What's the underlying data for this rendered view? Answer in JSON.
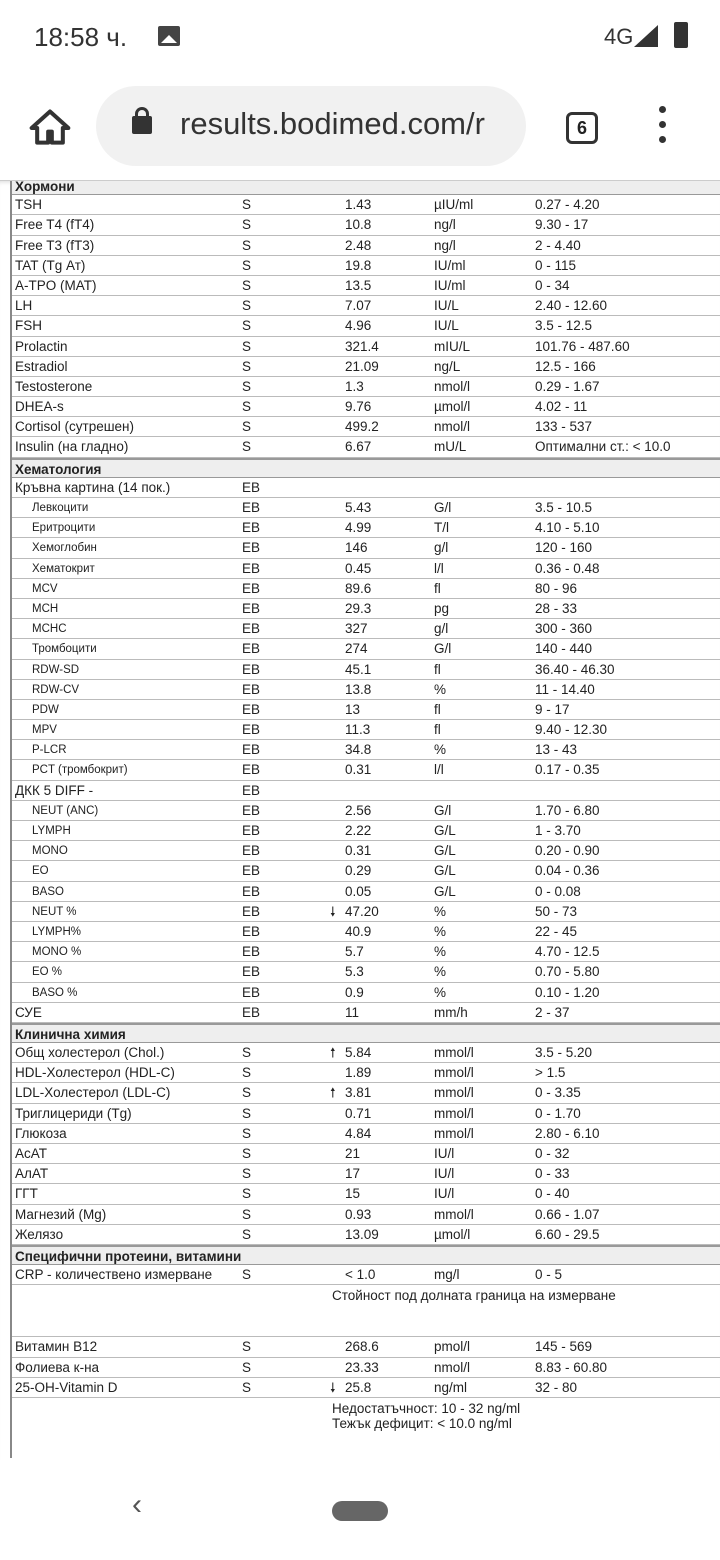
{
  "status_bar": {
    "time": "18:58 ч.",
    "network": "4G",
    "icons": [
      "image-icon",
      "signal-icon",
      "battery-icon"
    ]
  },
  "browser": {
    "url": "results.bodimed.com/r",
    "tab_count": "6",
    "icons": [
      "home-icon",
      "lock-icon",
      "menu-icon"
    ]
  },
  "table": {
    "section0": {
      "title": "Хормони",
      "rows": [
        {
          "name": "TSH",
          "spec": "S",
          "value": "1.43",
          "unit": "µIU/ml",
          "range": "0.27 - 4.20"
        },
        {
          "name": "Free T4 (fT4)",
          "spec": "S",
          "value": "10.8",
          "unit": "ng/l",
          "range": "9.30 - 17"
        },
        {
          "name": "Free T3 (fT3)",
          "spec": "S",
          "value": "2.48",
          "unit": "ng/l",
          "range": "2 - 4.40"
        },
        {
          "name": "TAT (Tg Ат)",
          "spec": "S",
          "value": "19.8",
          "unit": "IU/ml",
          "range": "0 - 115"
        },
        {
          "name": "A-TPO (MAT)",
          "spec": "S",
          "value": "13.5",
          "unit": "IU/ml",
          "range": "0 - 34"
        },
        {
          "name": "LH",
          "spec": "S",
          "value": "7.07",
          "unit": "IU/L",
          "range": "2.40 - 12.60"
        },
        {
          "name": "FSH",
          "spec": "S",
          "value": "4.96",
          "unit": "IU/L",
          "range": "3.5 - 12.5"
        },
        {
          "name": "Prolactin",
          "spec": "S",
          "value": "321.4",
          "unit": "mIU/L",
          "range": "101.76 - 487.60"
        },
        {
          "name": "Estradiol",
          "spec": "S",
          "value": "21.09",
          "unit": "ng/L",
          "range": "12.5 - 166"
        },
        {
          "name": "Testosterone",
          "spec": "S",
          "value": "1.3",
          "unit": "nmol/l",
          "range": "0.29 - 1.67"
        },
        {
          "name": "DHEA-s",
          "spec": "S",
          "value": "9.76",
          "unit": "µmol/l",
          "range": "4.02 - 11"
        },
        {
          "name": "Cortisol (сутрешен)",
          "spec": "S",
          "value": "499.2",
          "unit": "nmol/l",
          "range": "133 - 537"
        },
        {
          "name": "Insulin (на гладно)",
          "spec": "S",
          "value": "6.67",
          "unit": "mU/L",
          "range": "Оптимални ст.: < 10.0"
        }
      ]
    },
    "section1": {
      "title": "Хематология",
      "rows": [
        {
          "name": "Кръвна картина (14 пок.)",
          "spec": "EB",
          "value": "",
          "unit": "",
          "range": ""
        },
        {
          "name": "Левкоцити",
          "spec": "EB",
          "value": "5.43",
          "unit": "G/l",
          "range": "3.5 - 10.5",
          "sub": true
        },
        {
          "name": "Еритроцити",
          "spec": "EB",
          "value": "4.99",
          "unit": "T/l",
          "range": "4.10 - 5.10",
          "sub": true
        },
        {
          "name": "Хемоглобин",
          "spec": "EB",
          "value": "146",
          "unit": "g/l",
          "range": "120 - 160",
          "sub": true
        },
        {
          "name": "Хематокрит",
          "spec": "EB",
          "value": "0.45",
          "unit": "l/l",
          "range": "0.36 - 0.48",
          "sub": true
        },
        {
          "name": "MCV",
          "spec": "EB",
          "value": "89.6",
          "unit": "fl",
          "range": "80 - 96",
          "sub": true
        },
        {
          "name": "MCH",
          "spec": "EB",
          "value": "29.3",
          "unit": "pg",
          "range": "28 - 33",
          "sub": true
        },
        {
          "name": "MCHC",
          "spec": "EB",
          "value": "327",
          "unit": "g/l",
          "range": "300 - 360",
          "sub": true
        },
        {
          "name": "Тромбоцити",
          "spec": "EB",
          "value": "274",
          "unit": "G/l",
          "range": "140 - 440",
          "sub": true
        },
        {
          "name": "RDW-SD",
          "spec": "EB",
          "value": "45.1",
          "unit": "fl",
          "range": "36.40 - 46.30",
          "sub": true
        },
        {
          "name": "RDW-CV",
          "spec": "EB",
          "value": "13.8",
          "unit": "%",
          "range": "11 - 14.40",
          "sub": true
        },
        {
          "name": "PDW",
          "spec": "EB",
          "value": "13",
          "unit": "fl",
          "range": "9 - 17",
          "sub": true
        },
        {
          "name": "MPV",
          "spec": "EB",
          "value": "11.3",
          "unit": "fl",
          "range": "9.40 - 12.30",
          "sub": true
        },
        {
          "name": "P-LCR",
          "spec": "EB",
          "value": "34.8",
          "unit": "%",
          "range": "13 - 43",
          "sub": true
        },
        {
          "name": "PCT (тромбокрит)",
          "spec": "EB",
          "value": "0.31",
          "unit": "l/l",
          "range": "0.17 - 0.35",
          "sub": true
        },
        {
          "name": "ДКК 5 DIFF -",
          "spec": "EB",
          "value": "",
          "unit": "",
          "range": ""
        },
        {
          "name": "NEUT (ANC)",
          "spec": "EB",
          "value": "2.56",
          "unit": "G/l",
          "range": "1.70 - 6.80",
          "sub": true
        },
        {
          "name": "LYMPH",
          "spec": "EB",
          "value": "2.22",
          "unit": "G/L",
          "range": "1 - 3.70",
          "sub": true
        },
        {
          "name": "MONO",
          "spec": "EB",
          "value": "0.31",
          "unit": "G/L",
          "range": "0.20 - 0.90",
          "sub": true
        },
        {
          "name": "EO",
          "spec": "EB",
          "value": "0.29",
          "unit": "G/L",
          "range": "0.04 - 0.36",
          "sub": true
        },
        {
          "name": "BASO",
          "spec": "EB",
          "value": "0.05",
          "unit": "G/L",
          "range": "0 - 0.08",
          "sub": true
        },
        {
          "name": "NEUT %",
          "spec": "EB",
          "value": "47.20",
          "unit": "%",
          "range": "50 - 73",
          "sub": true,
          "flag": "low"
        },
        {
          "name": "LYMPH%",
          "spec": "EB",
          "value": "40.9",
          "unit": "%",
          "range": "22 - 45",
          "sub": true
        },
        {
          "name": "MONO %",
          "spec": "EB",
          "value": "5.7",
          "unit": "%",
          "range": "4.70 - 12.5",
          "sub": true
        },
        {
          "name": "EO %",
          "spec": "EB",
          "value": "5.3",
          "unit": "%",
          "range": "0.70 - 5.80",
          "sub": true
        },
        {
          "name": "BASO %",
          "spec": "EB",
          "value": "0.9",
          "unit": "%",
          "range": "0.10 - 1.20",
          "sub": true
        },
        {
          "name": "СУЕ",
          "spec": "EB",
          "value": "11",
          "unit": "mm/h",
          "range": "2 - 37"
        }
      ]
    },
    "section2": {
      "title": "Клинична химия",
      "rows": [
        {
          "name": "Общ холестерол (Chol.)",
          "spec": "S",
          "value": "5.84",
          "unit": "mmol/l",
          "range": "3.5 - 5.20",
          "flag": "high"
        },
        {
          "name": "HDL-Холестерол (HDL-C)",
          "spec": "S",
          "value": "1.89",
          "unit": "mmol/l",
          "range": "> 1.5"
        },
        {
          "name": "LDL-Холестерол (LDL-C)",
          "spec": "S",
          "value": "3.81",
          "unit": "mmol/l",
          "range": "0 - 3.35",
          "flag": "high"
        },
        {
          "name": "Триглицериди (Tg)",
          "spec": "S",
          "value": "0.71",
          "unit": "mmol/l",
          "range": "0 - 1.70"
        },
        {
          "name": "Глюкоза",
          "spec": "S",
          "value": "4.84",
          "unit": "mmol/l",
          "range": "2.80 - 6.10"
        },
        {
          "name": "АсАТ",
          "spec": "S",
          "value": "21",
          "unit": "IU/l",
          "range": "0 - 32"
        },
        {
          "name": "АлАТ",
          "spec": "S",
          "value": "17",
          "unit": "IU/l",
          "range": "0 - 33"
        },
        {
          "name": "ГГТ",
          "spec": "S",
          "value": "15",
          "unit": "IU/l",
          "range": "0 - 40"
        },
        {
          "name": "Магнезий (Mg)",
          "spec": "S",
          "value": "0.93",
          "unit": "mmol/l",
          "range": "0.66 - 1.07"
        },
        {
          "name": "Желязо",
          "spec": "S",
          "value": "13.09",
          "unit": "µmol/l",
          "range": "6.60 - 29.5"
        }
      ]
    },
    "section3": {
      "title": "Специфични протеини, витамини",
      "crp": {
        "name": "CRP - количествено измерване",
        "spec": "S",
        "value": "< 1.0",
        "unit": "mg/l",
        "range": "0 - 5"
      },
      "crp_note": "Стойност под долната граница на измерване",
      "rows": [
        {
          "name": "Витамин B12",
          "spec": "S",
          "value": "268.6",
          "unit": "pmol/l",
          "range": "145 - 569"
        },
        {
          "name": "Фолиева к-на",
          "spec": "S",
          "value": "23.33",
          "unit": "nmol/l",
          "range": "8.83 - 60.80"
        },
        {
          "name": "25-OH-Vitamin D",
          "spec": "S",
          "value": "25.8",
          "unit": "ng/ml",
          "range": "32 - 80",
          "flag": "low"
        }
      ],
      "vitd_note": [
        "Недостатъчност: 10 - 32 ng/ml",
        "Тежък дефицит: < 10.0 ng/ml"
      ]
    }
  },
  "flag_glyphs": {
    "high": "🠕",
    "low": "🠗"
  }
}
